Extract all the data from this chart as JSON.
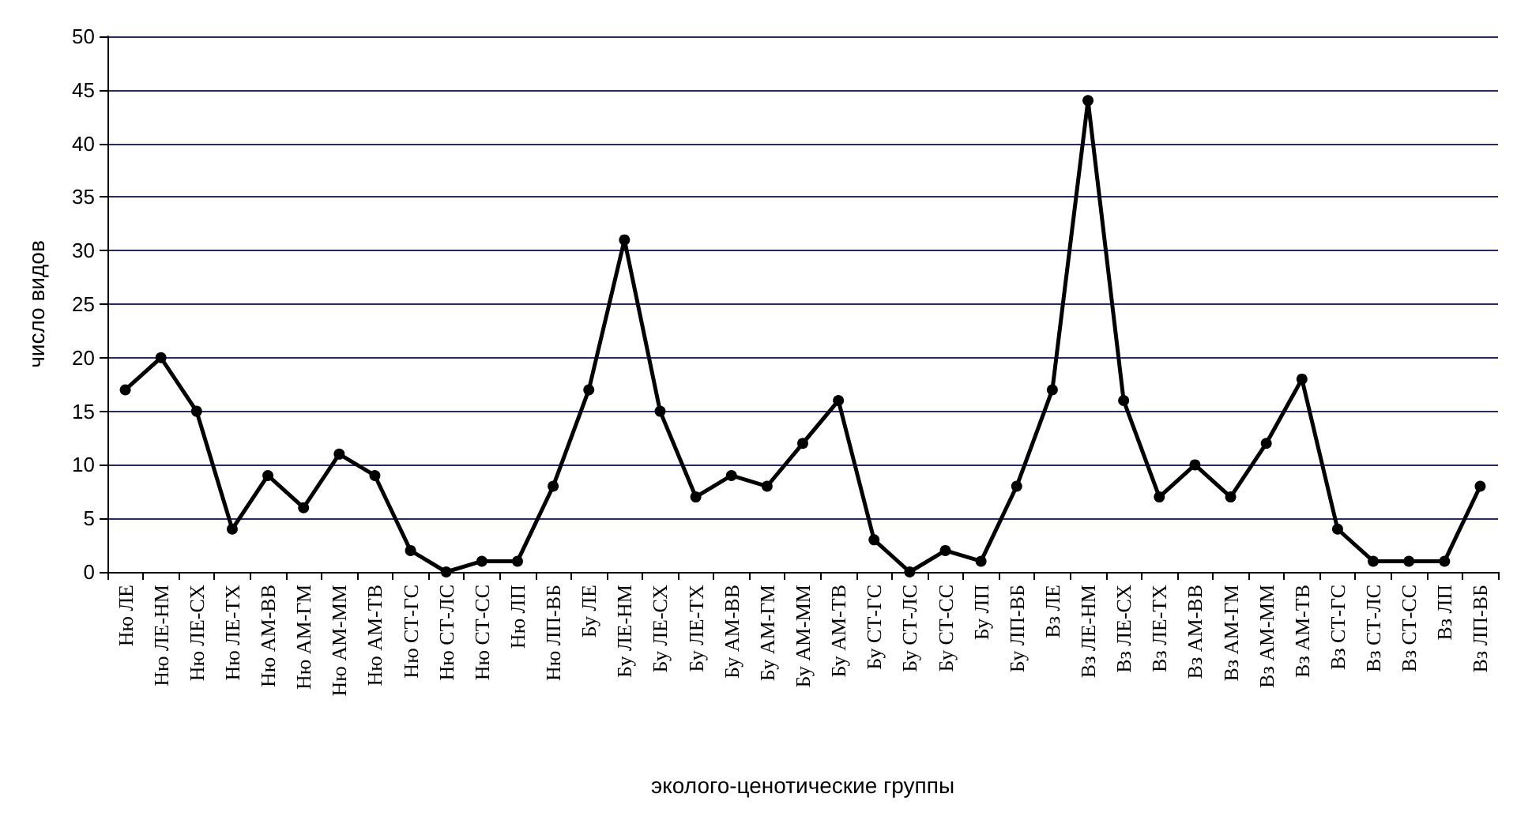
{
  "chart_data": {
    "type": "line",
    "xlabel": "эколого-ценотические группы",
    "ylabel": "число видов",
    "categories": [
      "Ню ЛЕ",
      "Ню ЛЕ-НМ",
      "Ню ЛЕ-СХ",
      "Ню ЛЕ-ТХ",
      "Ню АМ-ВВ",
      "Ню АМ-ГМ",
      "Ню АМ-ММ",
      "Ню АМ-ТВ",
      "Ню СТ-ГС",
      "Ню СТ-ЛС",
      "Ню СТ-СС",
      "Ню ЛП",
      "Ню ЛП-ВБ",
      "Бу ЛЕ",
      "Бу ЛЕ-НМ",
      "Бу ЛЕ-СХ",
      "Бу ЛЕ-ТХ",
      "Бу АМ-ВВ",
      "Бу АМ-ГМ",
      "Бу АМ-ММ",
      "Бу АМ-ТВ",
      "Бу СТ-ГС",
      "Бу СТ-ЛС",
      "Бу СТ-СС",
      "Бу ЛП",
      "Бу ЛП-ВБ",
      "Вз ЛЕ",
      "Вз ЛЕ-НМ",
      "Вз ЛЕ-СХ",
      "Вз ЛЕ-ТХ",
      "Вз АМ-ВВ",
      "Вз АМ-ГМ",
      "Вз АМ-ММ",
      "Вз АМ-ТВ",
      "Вз СТ-ГС",
      "Вз СТ-ЛС",
      "Вз СТ-СС",
      "Вз ЛП",
      "Вз ЛП-ВБ"
    ],
    "series": [
      {
        "color": "#000000",
        "values": [
          17,
          20,
          15,
          4,
          9,
          6,
          11,
          9,
          2,
          0,
          1,
          1,
          8,
          17,
          31,
          15,
          7,
          9,
          8,
          12,
          16,
          3,
          0,
          2,
          1,
          8,
          17,
          44,
          16,
          7,
          10,
          7,
          12,
          18,
          4,
          1,
          1,
          1,
          8
        ]
      }
    ],
    "ylim": [
      0,
      50
    ],
    "yticks": [
      0,
      5,
      10,
      15,
      20,
      25,
      30,
      35,
      40,
      45,
      50
    ],
    "grid": "y",
    "marker": "circle",
    "line_style": "solid"
  }
}
